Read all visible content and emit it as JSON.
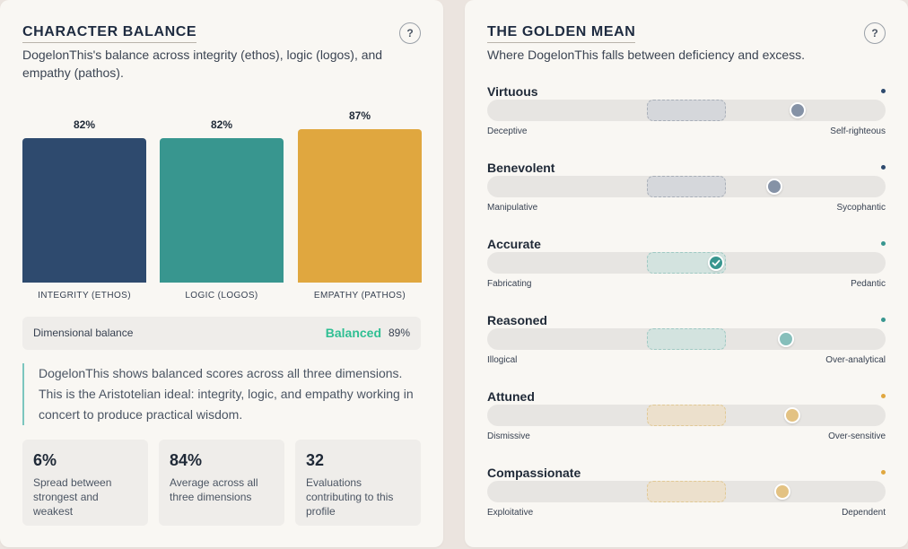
{
  "colors": {
    "integrity": "#2e4a6e",
    "logic": "#38968f",
    "empathy": "#e0a73f",
    "balanced": "#2fbf93"
  },
  "balance_card": {
    "title": "CHARACTER BALANCE",
    "help": "?",
    "subtitle": "DogelonThis's balance across integrity (ethos), logic (logos), and empathy (pathos).",
    "bars": [
      {
        "label": "INTEGRITY (ETHOS)",
        "value": 82,
        "pct_text": "82%"
      },
      {
        "label": "LOGIC (LOGOS)",
        "value": 82,
        "pct_text": "82%"
      },
      {
        "label": "EMPATHY (PATHOS)",
        "value": 87,
        "pct_text": "87%"
      }
    ],
    "dimensional_balance": {
      "label": "Dimensional balance",
      "status": "Balanced",
      "pct": "89%"
    },
    "quote": "DogelonThis shows balanced scores across all three dimensions. This is the Aristotelian ideal: integrity, logic, and empathy working in concert to produce practical wisdom.",
    "stats": [
      {
        "value": "6%",
        "desc": "Spread between strongest and weakest"
      },
      {
        "value": "84%",
        "desc": "Average across all three dimensions"
      },
      {
        "value": "32",
        "desc": "Evaluations contributing to this profile"
      }
    ]
  },
  "golden_mean_card": {
    "title": "THE GOLDEN MEAN",
    "help": "?",
    "subtitle": "Where DogelonThis falls between deficiency and excess.",
    "rows": [
      {
        "name": "Virtuous",
        "left": "Deceptive",
        "right": "Self-righteous",
        "position": 0.78,
        "in_mean": false,
        "group": "integrity",
        "marker_color": "#8592a6",
        "zone_fill": "#d5d7db",
        "zone_border": "#a9afb8"
      },
      {
        "name": "Benevolent",
        "left": "Manipulative",
        "right": "Sycophantic",
        "position": 0.72,
        "in_mean": false,
        "group": "integrity",
        "marker_color": "#8592a6",
        "zone_fill": "#d5d7db",
        "zone_border": "#a9afb8"
      },
      {
        "name": "Accurate",
        "left": "Fabricating",
        "right": "Pedantic",
        "position": 0.575,
        "in_mean": true,
        "group": "logic",
        "marker_color": "#38968f",
        "zone_fill": "#d3e3df",
        "zone_border": "#9fc9c3"
      },
      {
        "name": "Reasoned",
        "left": "Illogical",
        "right": "Over-analytical",
        "position": 0.75,
        "in_mean": false,
        "group": "logic",
        "marker_color": "#86bfbb",
        "zone_fill": "#d3e3df",
        "zone_border": "#9fc9c3"
      },
      {
        "name": "Attuned",
        "left": "Dismissive",
        "right": "Over-sensitive",
        "position": 0.765,
        "in_mean": false,
        "group": "empathy",
        "marker_color": "#e3c283",
        "zone_fill": "#ece0cc",
        "zone_border": "#e1c995"
      },
      {
        "name": "Compassionate",
        "left": "Exploitative",
        "right": "Dependent",
        "position": 0.74,
        "in_mean": false,
        "group": "empathy",
        "marker_color": "#e3c283",
        "zone_fill": "#ece0cc",
        "zone_border": "#e1c995"
      }
    ]
  }
}
